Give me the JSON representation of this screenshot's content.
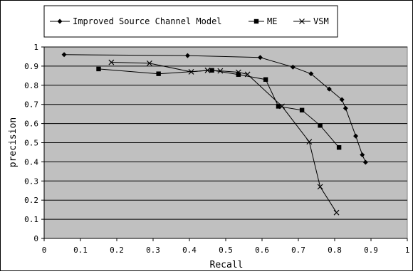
{
  "chart_data": {
    "type": "line",
    "title": "",
    "xlabel": "Recall",
    "ylabel": "precision",
    "xlim": [
      0,
      1
    ],
    "ylim": [
      0,
      1
    ],
    "xticks": [
      "0",
      "0.1",
      "0.2",
      "0.3",
      "0.4",
      "0.5",
      "0.6",
      "0.7",
      "0.8",
      "0.9",
      "1"
    ],
    "yticks": [
      "0",
      "0.1",
      "0.2",
      "0.3",
      "0.4",
      "0.5",
      "0.6",
      "0.7",
      "0.8",
      "0.9",
      "1"
    ],
    "grid": "horizontal",
    "legend_position": "top",
    "plot_background": "#c0c0c0",
    "series": [
      {
        "name": "Improved Source Channel Model",
        "marker": "diamond",
        "color": "#000000",
        "points": [
          [
            0.055,
            0.96
          ],
          [
            0.395,
            0.955
          ],
          [
            0.595,
            0.945
          ],
          [
            0.685,
            0.895
          ],
          [
            0.735,
            0.86
          ],
          [
            0.785,
            0.78
          ],
          [
            0.82,
            0.725
          ],
          [
            0.83,
            0.68
          ],
          [
            0.858,
            0.535
          ],
          [
            0.876,
            0.437
          ],
          [
            0.885,
            0.398
          ]
        ]
      },
      {
        "name": "ME",
        "marker": "square",
        "color": "#000000",
        "points": [
          [
            0.15,
            0.885
          ],
          [
            0.315,
            0.86
          ],
          [
            0.462,
            0.878
          ],
          [
            0.535,
            0.856
          ],
          [
            0.61,
            0.83
          ],
          [
            0.645,
            0.69
          ],
          [
            0.71,
            0.67
          ],
          [
            0.76,
            0.59
          ],
          [
            0.812,
            0.475
          ]
        ]
      },
      {
        "name": "VSM",
        "marker": "x",
        "color": "#000000",
        "points": [
          [
            0.185,
            0.92
          ],
          [
            0.29,
            0.915
          ],
          [
            0.405,
            0.87
          ],
          [
            0.45,
            0.878
          ],
          [
            0.485,
            0.875
          ],
          [
            0.535,
            0.868
          ],
          [
            0.56,
            0.857
          ],
          [
            0.655,
            0.69
          ],
          [
            0.73,
            0.505
          ],
          [
            0.76,
            0.27
          ],
          [
            0.805,
            0.135
          ]
        ]
      }
    ]
  }
}
